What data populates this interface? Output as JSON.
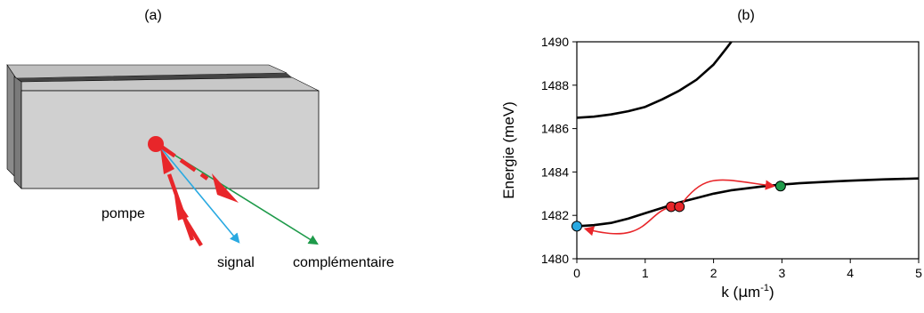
{
  "panel_a": {
    "label": "(a)",
    "labels": {
      "pump": "pompe",
      "signal": "signal",
      "idler": "complémentaire"
    }
  },
  "panel_b": {
    "label": "(b)",
    "colors": {
      "curve": "#000000",
      "arrow": "#e8262a",
      "signal_point": "#29a9e1",
      "pump_point": "#e8262a",
      "idler_point": "#1e9a4a"
    },
    "chart_data": {
      "type": "line",
      "xlabel": "k (µm-1)",
      "xlabel_parts": {
        "main": "k (",
        "mu": "μ",
        "m": "m",
        "sup": "-1",
        "close": ")"
      },
      "ylabel": "Energie (meV)",
      "xlim": [
        0,
        5
      ],
      "ylim": [
        1480,
        1490
      ],
      "x_ticks": [
        0,
        1,
        2,
        3,
        4,
        5
      ],
      "y_ticks": [
        1480,
        1482,
        1484,
        1486,
        1488,
        1490
      ],
      "grid": false,
      "series": [
        {
          "branch": "upper",
          "x": [
            0.0,
            0.25,
            0.5,
            0.75,
            1.0,
            1.25,
            1.5,
            1.75,
            2.0,
            2.1,
            2.2,
            2.26
          ],
          "y": [
            1486.5,
            1486.55,
            1486.65,
            1486.8,
            1487.0,
            1487.35,
            1487.75,
            1488.25,
            1488.95,
            1489.35,
            1489.75,
            1490.0
          ]
        },
        {
          "branch": "lower",
          "x": [
            0.0,
            0.25,
            0.5,
            0.75,
            1.0,
            1.25,
            1.5,
            1.75,
            2.0,
            2.25,
            2.5,
            2.75,
            3.0,
            3.25,
            3.5,
            3.75,
            4.0,
            4.25,
            4.5,
            4.75,
            5.0
          ],
          "y": [
            1481.5,
            1481.55,
            1481.65,
            1481.85,
            1482.1,
            1482.35,
            1482.6,
            1482.8,
            1483.0,
            1483.15,
            1483.25,
            1483.35,
            1483.42,
            1483.48,
            1483.52,
            1483.56,
            1483.6,
            1483.63,
            1483.66,
            1483.68,
            1483.7
          ]
        }
      ],
      "points": [
        {
          "role": "signal",
          "x": 0.0,
          "y": 1481.5
        },
        {
          "role": "pump",
          "x": 1.38,
          "y": 1482.4
        },
        {
          "role": "pump",
          "x": 1.5,
          "y": 1482.4
        },
        {
          "role": "idler",
          "x": 2.98,
          "y": 1483.35
        }
      ]
    }
  }
}
